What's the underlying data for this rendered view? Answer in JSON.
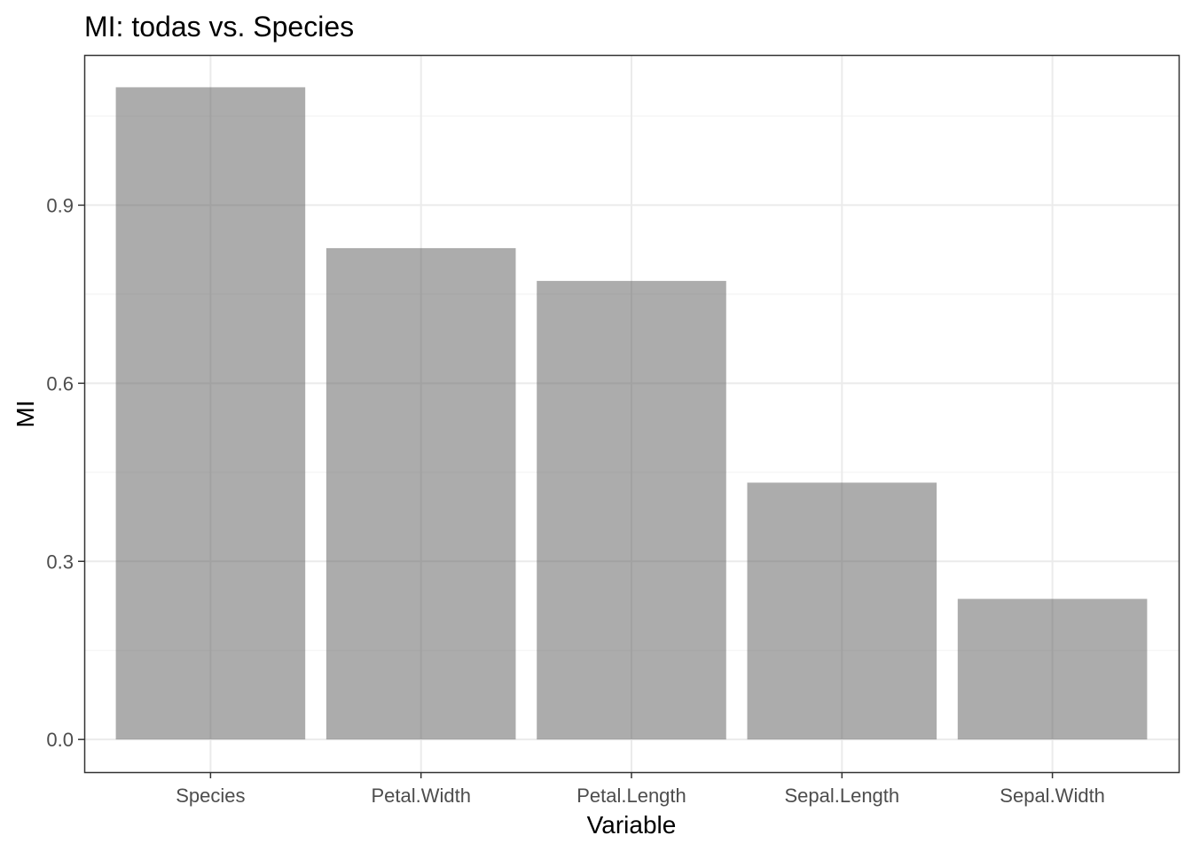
{
  "chart_data": {
    "type": "bar",
    "title": "MI: todas vs. Species",
    "xlabel": "Variable",
    "ylabel": "MI",
    "categories": [
      "Species",
      "Petal.Width",
      "Petal.Length",
      "Sepal.Length",
      "Sepal.Width"
    ],
    "values": [
      1.0986,
      0.8276,
      0.7724,
      0.4326,
      0.2368
    ],
    "ylim": [
      -0.055,
      1.153
    ],
    "yticks": [
      0.0,
      0.3,
      0.6,
      0.9
    ],
    "ytick_labels": [
      "0.0",
      "0.3",
      "0.6",
      "0.9"
    ],
    "grid": true,
    "legend": "none",
    "colors": {
      "bar": "#595959",
      "bar_opacity": 0.5,
      "panel_border": "#333333",
      "grid_major": "#ebebeb",
      "grid_minor": "#f4f4f4",
      "tick_text": "#4d4d4d"
    }
  }
}
